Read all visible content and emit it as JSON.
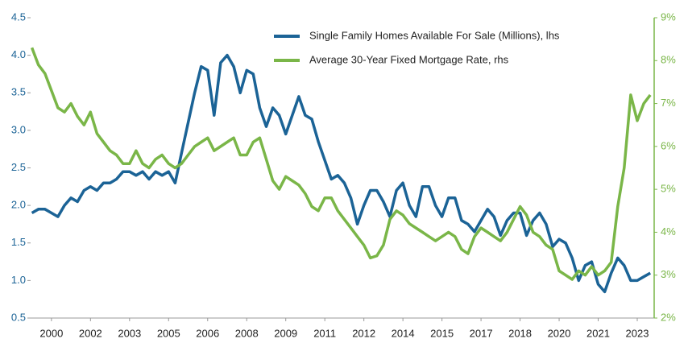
{
  "chart_data": {
    "type": "line",
    "x": [
      1999.25,
      1999.5,
      1999.75,
      2000,
      2000.25,
      2000.5,
      2000.75,
      2001,
      2001.25,
      2001.5,
      2001.75,
      2002,
      2002.25,
      2002.5,
      2002.75,
      2003,
      2003.25,
      2003.5,
      2003.75,
      2004,
      2004.25,
      2004.5,
      2004.75,
      2005,
      2005.25,
      2005.5,
      2005.75,
      2006,
      2006.25,
      2006.5,
      2006.75,
      2007,
      2007.25,
      2007.5,
      2007.75,
      2008,
      2008.25,
      2008.5,
      2008.75,
      2009,
      2009.25,
      2009.5,
      2009.75,
      2010,
      2010.25,
      2010.5,
      2010.75,
      2011,
      2011.25,
      2011.5,
      2011.75,
      2012,
      2012.25,
      2012.5,
      2012.75,
      2013,
      2013.25,
      2013.5,
      2013.75,
      2014,
      2014.25,
      2014.5,
      2014.75,
      2015,
      2015.25,
      2015.5,
      2015.75,
      2016,
      2016.25,
      2016.5,
      2016.75,
      2017,
      2017.25,
      2017.5,
      2017.75,
      2018,
      2018.25,
      2018.5,
      2018.75,
      2019,
      2019.25,
      2019.5,
      2019.75,
      2020,
      2020.25,
      2020.5,
      2020.75,
      2021,
      2021.25,
      2021.5,
      2021.75,
      2022,
      2022.25,
      2022.5,
      2022.75,
      2023
    ],
    "series": [
      {
        "name": "Single Family Homes Available For Sale (Millions), lhs",
        "color": "#1b6396",
        "values": [
          1.9,
          1.95,
          1.95,
          1.9,
          1.85,
          2.0,
          2.1,
          2.05,
          2.2,
          2.25,
          2.2,
          2.3,
          2.3,
          2.35,
          2.45,
          2.45,
          2.4,
          2.45,
          2.35,
          2.45,
          2.4,
          2.45,
          2.3,
          2.7,
          3.1,
          3.5,
          3.85,
          3.8,
          3.2,
          3.9,
          4.0,
          3.85,
          3.5,
          3.8,
          3.75,
          3.3,
          3.05,
          3.3,
          3.2,
          2.95,
          3.2,
          3.45,
          3.2,
          3.15,
          2.85,
          2.6,
          2.35,
          2.4,
          2.3,
          2.1,
          1.75,
          2.0,
          2.2,
          2.2,
          2.05,
          1.85,
          2.2,
          2.3,
          2.0,
          1.85,
          2.25,
          2.25,
          2.0,
          1.85,
          2.1,
          2.1,
          1.8,
          1.75,
          1.65,
          1.8,
          1.95,
          1.85,
          1.6,
          1.8,
          1.9,
          1.9,
          1.6,
          1.8,
          1.9,
          1.75,
          1.45,
          1.55,
          1.5,
          1.3,
          1.0,
          1.2,
          1.25,
          0.95,
          0.85,
          1.1,
          1.3,
          1.2,
          1.0,
          1.0,
          1.05,
          1.1
        ]
      },
      {
        "name": "Average 30-Year Fixed Mortgage Rate, rhs",
        "color": "#7ab648",
        "axis": "y2",
        "values": [
          8.3,
          7.9,
          7.7,
          7.3,
          6.9,
          6.8,
          7.0,
          6.7,
          6.5,
          6.8,
          6.3,
          6.1,
          5.9,
          5.8,
          5.6,
          5.6,
          5.9,
          5.6,
          5.5,
          5.7,
          5.8,
          5.6,
          5.5,
          5.6,
          5.8,
          6.0,
          6.1,
          6.2,
          5.9,
          6.0,
          6.1,
          6.2,
          5.8,
          5.8,
          6.1,
          6.2,
          5.7,
          5.2,
          5.0,
          5.3,
          5.2,
          5.1,
          4.9,
          4.6,
          4.5,
          4.8,
          4.8,
          4.5,
          4.3,
          4.1,
          3.9,
          3.7,
          3.4,
          3.45,
          3.7,
          4.3,
          4.5,
          4.4,
          4.2,
          4.1,
          4.0,
          3.9,
          3.8,
          3.9,
          4.0,
          3.9,
          3.6,
          3.5,
          3.9,
          4.1,
          4.0,
          3.9,
          3.8,
          4.0,
          4.3,
          4.6,
          4.4,
          4.0,
          3.9,
          3.7,
          3.6,
          3.1,
          3.0,
          2.9,
          3.1,
          3.0,
          3.2,
          3.0,
          3.1,
          3.3,
          4.6,
          5.5,
          7.2,
          6.6,
          7.0,
          7.2
        ]
      }
    ],
    "xlim": [
      1999.2,
      2023.15
    ],
    "xticks": [
      2000,
      {
        "value": 2001.5,
        "label": "2002"
      },
      2003,
      {
        "value": 2004.5,
        "label": "2005"
      },
      2006,
      {
        "value": 2007.5,
        "label": "2008"
      },
      2009,
      {
        "value": 2010.5,
        "label": "2011"
      },
      2012,
      {
        "value": 2013.5,
        "label": "2014"
      },
      2015,
      {
        "value": 2016.5,
        "label": "2017"
      },
      2018,
      {
        "value": 2019.5,
        "label": "2020"
      },
      2021,
      {
        "value": 2022.5,
        "label": "2023"
      }
    ],
    "ylim": [
      0.5,
      4.5
    ],
    "yticks": [
      0.5,
      {
        "value": 1,
        "label": "1.0"
      },
      1.5,
      {
        "value": 2,
        "label": "2.0"
      },
      2.5,
      {
        "value": 3,
        "label": "3.0"
      },
      3.5,
      {
        "value": 4,
        "label": "4.0"
      },
      4.5
    ],
    "y2lim": [
      2,
      9
    ],
    "y2ticks": [
      {
        "value": 2,
        "label": "2%"
      },
      {
        "value": 3,
        "label": "3%"
      },
      {
        "value": 4,
        "label": "4%"
      },
      {
        "value": 5,
        "label": "5%"
      },
      {
        "value": 6,
        "label": "6%"
      },
      {
        "value": 7,
        "label": "7%"
      },
      {
        "value": 8,
        "label": "8%"
      },
      {
        "value": 9,
        "label": "9%"
      }
    ],
    "legend": "upper right"
  }
}
